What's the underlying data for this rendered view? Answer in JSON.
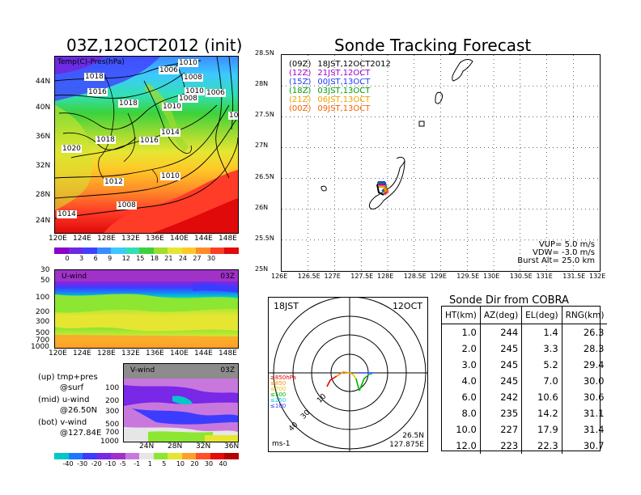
{
  "left_title": "03Z,12OCT2012 (init)",
  "right_title": "Sonde Tracking Forecast",
  "map_panel": {
    "label": "Temp(C)-Pres(hPa)",
    "lat_ticks": [
      "44N",
      "40N",
      "36N",
      "32N",
      "28N",
      "24N"
    ],
    "lon_ticks": [
      "120E",
      "124E",
      "128E",
      "132E",
      "136E",
      "140E",
      "144E",
      "148E"
    ],
    "isobar_labels": [
      "1010",
      "1018",
      "1016",
      "1018",
      "1008",
      "1006",
      "1010",
      "1008",
      "1006",
      "1010",
      "1014",
      "1020",
      "1018",
      "1016",
      "1010",
      "1012",
      "1008",
      "1014",
      "10"
    ],
    "colorbar_ticks": [
      "0",
      "3",
      "6",
      "9",
      "12",
      "15",
      "18",
      "21",
      "24",
      "27",
      "30"
    ],
    "colorbar_colors": [
      "#8c00c8",
      "#7028e0",
      "#4040ff",
      "#3c8cff",
      "#3cc8ff",
      "#32e0b4",
      "#3cd23c",
      "#a0dc32",
      "#e6e632",
      "#ffc828",
      "#ff8c28",
      "#ff3c28",
      "#e00a0a"
    ]
  },
  "u_panel": {
    "label": "U-wind",
    "time": "03Z",
    "y_ticks": [
      "30",
      "50",
      "100",
      "200",
      "300",
      "500",
      "700",
      "1000"
    ],
    "x_ticks": [
      "120E",
      "124E",
      "128E",
      "132E",
      "136E",
      "140E",
      "144E",
      "148E"
    ]
  },
  "v_panel": {
    "label": "V-wind",
    "time": "03Z",
    "y_ticks": [
      "100",
      "200",
      "300",
      "500",
      "700",
      "1000"
    ],
    "x_ticks": [
      "24N",
      "28N",
      "32N",
      "36N"
    ]
  },
  "legend_notes": [
    {
      "line1": "(up) tmp+pres",
      "line2": "@surf"
    },
    {
      "line1": "(mid) u-wind",
      "line2": "@26.50N"
    },
    {
      "line1": "(bot) v-wind",
      "line2": "@127.84E"
    }
  ],
  "wind_colorbar": {
    "ticks": [
      "-40",
      "-30",
      "-20",
      "-10",
      "-5",
      "-1",
      "1",
      "5",
      "10",
      "20",
      "30",
      "40"
    ],
    "colors": [
      "#00c8c8",
      "#1e78ff",
      "#3c3cff",
      "#7828e6",
      "#a032c8",
      "#c878dc",
      "#e6e6e6",
      "#8ce632",
      "#e6e632",
      "#ffa028",
      "#ff5028",
      "#e60a0a",
      "#b40000"
    ]
  },
  "track_panel": {
    "lat_ticks": [
      "28.5N",
      "28N",
      "27.5N",
      "27N",
      "26.5N",
      "26N",
      "25.5N",
      "25N"
    ],
    "lon_ticks": [
      "126E",
      "126.5E",
      "127E",
      "127.5E",
      "128E",
      "128.5E",
      "129E",
      "129.5E",
      "130E",
      "130.5E",
      "131E",
      "131.5E",
      "132E"
    ],
    "legend": [
      {
        "code": "(09Z)",
        "text": "18JST,12OCT2012",
        "color": "#000000"
      },
      {
        "code": "(12Z)",
        "text": "21JST,12OCT",
        "color": "#a000c8"
      },
      {
        "code": "(15Z)",
        "text": "00JST,13OCT",
        "color": "#1e3cff"
      },
      {
        "code": "(18Z)",
        "text": "03JST,13OCT",
        "color": "#00a000"
      },
      {
        "code": "(21Z)",
        "text": "06JST,13OCT",
        "color": "#f0a000"
      },
      {
        "code": "(00Z)",
        "text": "09JST,13OCT",
        "color": "#f06400"
      }
    ],
    "params": [
      "VUP= 5.0 m/s",
      "VDW= -3.0 m/s",
      "Burst Alt= 25.0 km"
    ]
  },
  "polar_panel": {
    "time_label": "18JST",
    "date_label": "12OCT",
    "unit": "ms-1",
    "location_lat": "26.5N",
    "location_lon": "127.875E",
    "ring_labels": [
      "10",
      "30",
      "40"
    ],
    "pressure_legend": [
      {
        "text": "≥850hPa",
        "color": "#e60000"
      },
      {
        "text": "≤850",
        "color": "#ff8c00"
      },
      {
        "text": "≤700",
        "color": "#e6c800"
      },
      {
        "text": "≤500",
        "color": "#00b400"
      },
      {
        "text": "≤250",
        "color": "#00c8e6"
      },
      {
        "text": "≤100",
        "color": "#3c3cff"
      }
    ]
  },
  "sonde_dir": {
    "title": "Sonde Dir from COBRA",
    "columns": [
      "HT(km)",
      "AZ(deg)",
      "EL(deg)",
      "RNG(km)"
    ],
    "rows": [
      [
        "1.0",
        "244",
        "1.4",
        "26.3"
      ],
      [
        "2.0",
        "245",
        "3.3",
        "28.3"
      ],
      [
        "3.0",
        "245",
        "5.2",
        "29.4"
      ],
      [
        "4.0",
        "245",
        "7.0",
        "30.0"
      ],
      [
        "6.0",
        "242",
        "10.6",
        "30.6"
      ],
      [
        "8.0",
        "235",
        "14.2",
        "31.1"
      ],
      [
        "10.0",
        "227",
        "17.9",
        "31.4"
      ],
      [
        "12.0",
        "223",
        "22.3",
        "30.7"
      ]
    ]
  }
}
